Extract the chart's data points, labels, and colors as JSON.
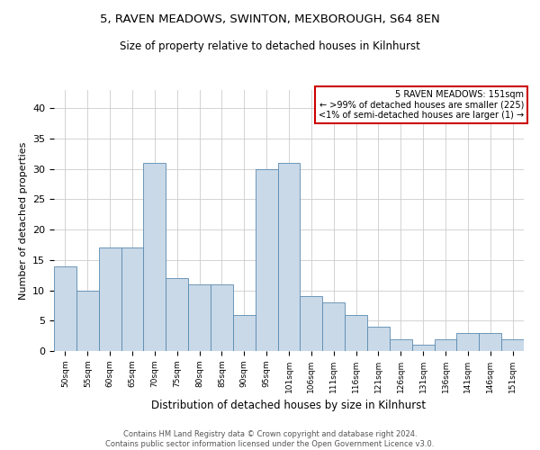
{
  "title_line1": "5, RAVEN MEADOWS, SWINTON, MEXBOROUGH, S64 8EN",
  "title_line2": "Size of property relative to detached houses in Kilnhurst",
  "xlabel": "Distribution of detached houses by size in Kilnhurst",
  "ylabel": "Number of detached properties",
  "categories": [
    "50sqm",
    "55sqm",
    "60sqm",
    "65sqm",
    "70sqm",
    "75sqm",
    "80sqm",
    "85sqm",
    "90sqm",
    "95sqm",
    "101sqm",
    "106sqm",
    "111sqm",
    "116sqm",
    "121sqm",
    "126sqm",
    "131sqm",
    "136sqm",
    "141sqm",
    "146sqm",
    "151sqm"
  ],
  "values": [
    14,
    10,
    17,
    17,
    31,
    12,
    11,
    11,
    6,
    30,
    31,
    9,
    8,
    6,
    4,
    2,
    1,
    2,
    3,
    3,
    2
  ],
  "bar_color": "#c9d9e8",
  "bar_edge_color": "#5a8ab0",
  "annotation_title": "5 RAVEN MEADOWS: 151sqm",
  "annotation_line2": "← >99% of detached houses are smaller (225)",
  "annotation_line3": "<1% of semi-detached houses are larger (1) →",
  "annotation_box_color": "#ffffff",
  "annotation_box_edge": "#cc0000",
  "footer_line1": "Contains HM Land Registry data © Crown copyright and database right 2024.",
  "footer_line2": "Contains public sector information licensed under the Open Government Licence v3.0.",
  "ylim": [
    0,
    43
  ],
  "yticks": [
    0,
    5,
    10,
    15,
    20,
    25,
    30,
    35,
    40
  ],
  "background_color": "#ffffff",
  "grid_color": "#cccccc"
}
